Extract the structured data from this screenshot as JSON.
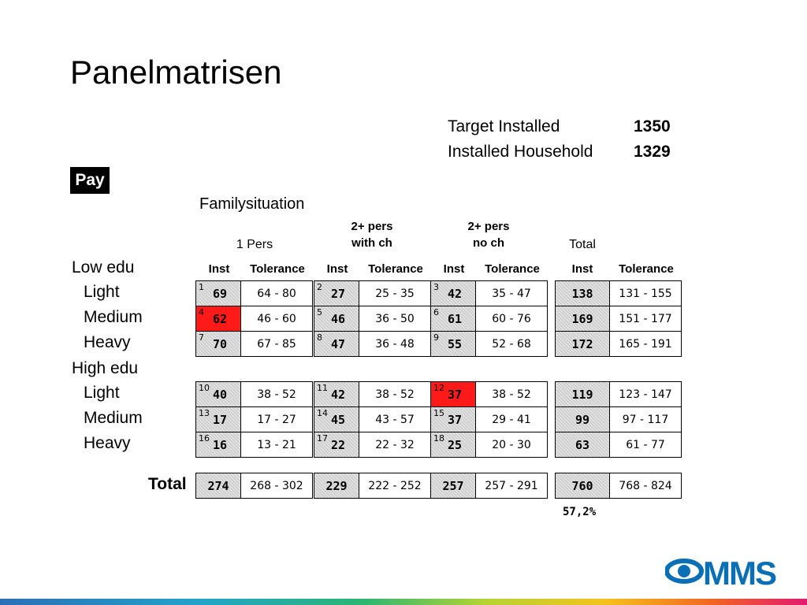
{
  "title": "Panelmatrisen",
  "target": {
    "target_installed_label": "Target Installed",
    "target_installed_value": "1350",
    "installed_household_label": "Installed Household",
    "installed_household_value": "1329"
  },
  "pay_label": "Pay",
  "family_label": "Familysituation",
  "column_groups": [
    {
      "line1": "1 Pers",
      "line2": ""
    },
    {
      "line1": "2+ pers",
      "line2": "with ch"
    },
    {
      "line1": "2+ pers",
      "line2": "no ch"
    },
    {
      "line1": "Total",
      "line2": ""
    }
  ],
  "sub_headers": {
    "inst": "Inst",
    "tolerance": "Tolerance"
  },
  "groups": [
    {
      "label": "Low edu",
      "rows": [
        {
          "label": "Light",
          "cells": [
            {
              "num": "1",
              "inst": "69",
              "tol": "64 - 80",
              "highlight": false
            },
            {
              "num": "2",
              "inst": "27",
              "tol": "25 - 35",
              "highlight": false
            },
            {
              "num": "3",
              "inst": "42",
              "tol": "35 - 47",
              "highlight": false
            }
          ],
          "total": {
            "inst": "138",
            "tol": "131 - 155"
          }
        },
        {
          "label": "Medium",
          "cells": [
            {
              "num": "4",
              "inst": "62",
              "tol": "46 - 60",
              "highlight": true
            },
            {
              "num": "5",
              "inst": "46",
              "tol": "36 - 50",
              "highlight": false
            },
            {
              "num": "6",
              "inst": "61",
              "tol": "60 - 76",
              "highlight": false
            }
          ],
          "total": {
            "inst": "169",
            "tol": "151 - 177"
          }
        },
        {
          "label": "Heavy",
          "cells": [
            {
              "num": "7",
              "inst": "70",
              "tol": "67 - 85",
              "highlight": false
            },
            {
              "num": "8",
              "inst": "47",
              "tol": "36 - 48",
              "highlight": false
            },
            {
              "num": "9",
              "inst": "55",
              "tol": "52 - 68",
              "highlight": false
            }
          ],
          "total": {
            "inst": "172",
            "tol": "165 - 191"
          }
        }
      ]
    },
    {
      "label": "High edu",
      "rows": [
        {
          "label": "Light",
          "cells": [
            {
              "num": "10",
              "inst": "40",
              "tol": "38 - 52",
              "highlight": false
            },
            {
              "num": "11",
              "inst": "42",
              "tol": "38 - 52",
              "highlight": false
            },
            {
              "num": "12",
              "inst": "37",
              "tol": "38 - 52",
              "highlight": true
            }
          ],
          "total": {
            "inst": "119",
            "tol": "123 - 147"
          }
        },
        {
          "label": "Medium",
          "cells": [
            {
              "num": "13",
              "inst": "17",
              "tol": "17 - 27",
              "highlight": false
            },
            {
              "num": "14",
              "inst": "45",
              "tol": "43 - 57",
              "highlight": false
            },
            {
              "num": "15",
              "inst": "37",
              "tol": "29 - 41",
              "highlight": false
            }
          ],
          "total": {
            "inst": "99",
            "tol": "97 - 117"
          }
        },
        {
          "label": "Heavy",
          "cells": [
            {
              "num": "16",
              "inst": "16",
              "tol": "13 - 21",
              "highlight": false
            },
            {
              "num": "17",
              "inst": "22",
              "tol": "22 - 32",
              "highlight": false
            },
            {
              "num": "18",
              "inst": "25",
              "tol": "20 - 30",
              "highlight": false
            }
          ],
          "total": {
            "inst": "63",
            "tol": "61 - 77"
          }
        }
      ]
    }
  ],
  "total_row": {
    "label": "Total",
    "cells": [
      {
        "inst": "274",
        "tol": "268 - 302"
      },
      {
        "inst": "229",
        "tol": "222 - 252"
      },
      {
        "inst": "257",
        "tol": "257 - 291"
      }
    ],
    "total": {
      "inst": "760",
      "tol": "768 - 824"
    }
  },
  "percent": "57,2%",
  "logo_text": "MMS",
  "colors": {
    "highlight": "#ff1a1a",
    "logo_blue": "#0a6fb4"
  }
}
